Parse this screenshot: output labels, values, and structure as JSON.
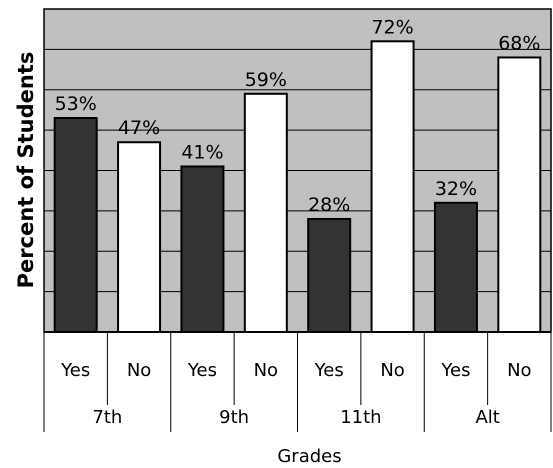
{
  "chart_data": {
    "type": "bar",
    "title": "",
    "xlabel": "Grades",
    "ylabel": "Percent of Students",
    "ylim": [
      0,
      80
    ],
    "grid": true,
    "legend": "none",
    "groups": [
      {
        "label": "7th",
        "bars": [
          {
            "label": "Yes",
            "value": 53,
            "value_label": "53%"
          },
          {
            "label": "No",
            "value": 47,
            "value_label": "47%"
          }
        ]
      },
      {
        "label": "9th",
        "bars": [
          {
            "label": "Yes",
            "value": 41,
            "value_label": "41%"
          },
          {
            "label": "No",
            "value": 59,
            "value_label": "59%"
          }
        ]
      },
      {
        "label": "11th",
        "bars": [
          {
            "label": "Yes",
            "value": 28,
            "value_label": "28%"
          },
          {
            "label": "No",
            "value": 72,
            "value_label": "72%"
          }
        ]
      },
      {
        "label": "Alt",
        "bars": [
          {
            "label": "Yes",
            "value": 32,
            "value_label": "32%"
          },
          {
            "label": "No",
            "value": 68,
            "value_label": "68%"
          }
        ]
      }
    ],
    "colors": {
      "yes": "#333333",
      "no": "#ffffff",
      "plot_background": "#c0c0c0",
      "gridline": "#000000"
    }
  }
}
